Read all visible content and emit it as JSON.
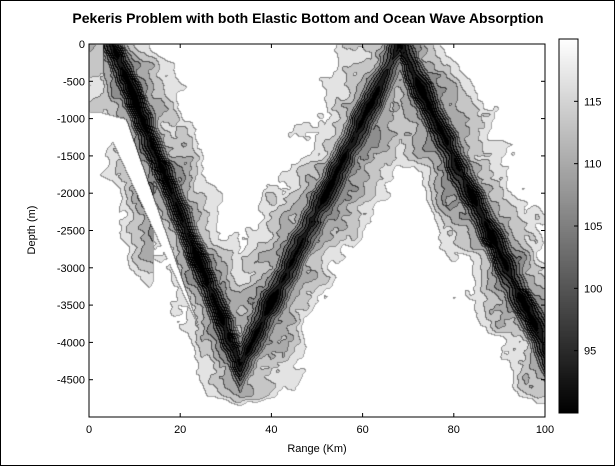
{
  "chart_data": {
    "type": "heatmap",
    "title": "Pekeris Problem with both Elastic Bottom and Ocean Wave Absorption",
    "xlabel": "Range (Km)",
    "ylabel": "Depth (m)",
    "xlim": [
      0,
      100
    ],
    "ylim": [
      -5000,
      0
    ],
    "x_ticks": [
      "0",
      "20",
      "40",
      "60",
      "80",
      "100"
    ],
    "y_ticks": [
      "0",
      "-500",
      "-1000",
      "-1500",
      "-2000",
      "-2500",
      "-3000",
      "-3500",
      "-4000",
      "-4500"
    ],
    "colorbar": {
      "range": [
        90,
        120
      ],
      "ticks": [
        "95",
        "100",
        "105",
        "110",
        "115"
      ],
      "colormap": "gray"
    },
    "features": {
      "v_shape_trough_depth_m": -4300,
      "v_shape_min_range_km": 33,
      "v_shape_left_range_km": 5,
      "v_shape_right_peak_range_km": 68,
      "white_shadow_wedge": [
        [
          2,
          -900
        ],
        [
          8,
          -1000
        ],
        [
          24,
          -3800
        ]
      ]
    }
  }
}
